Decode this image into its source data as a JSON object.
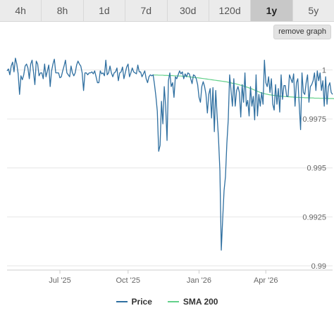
{
  "tabs": [
    {
      "label": "4h",
      "active": false
    },
    {
      "label": "8h",
      "active": false
    },
    {
      "label": "1d",
      "active": false
    },
    {
      "label": "7d",
      "active": false
    },
    {
      "label": "30d",
      "active": false
    },
    {
      "label": "120d",
      "active": false
    },
    {
      "label": "1y",
      "active": true
    },
    {
      "label": "5y",
      "active": false
    }
  ],
  "remove_graph_label": "remove graph",
  "colors": {
    "price": "#2f6fa0",
    "sma": "#62d08a",
    "grid": "#e6e6e6",
    "axis_text": "#666666"
  },
  "chart_data": {
    "type": "line",
    "x_tick_labels": [
      "Jul '25",
      "Oct '25",
      "Jan '26",
      "Apr '26"
    ],
    "y_ticks": [
      0.99,
      0.9925,
      0.995,
      0.9975,
      1
    ],
    "y_tick_labels": [
      "0.99",
      "0.9925",
      "0.995",
      "0.9975",
      "1"
    ],
    "ylim": [
      0.99,
      1.0012
    ],
    "grid": true,
    "legend_position": "bottom-center",
    "series": [
      {
        "name": "Price",
        "values": [
          0.99995,
          1.00005,
          0.99975,
          1.0002,
          1.0004,
          0.9999,
          1.0006,
          1.0003,
          0.9998,
          0.99875,
          0.9997,
          0.9995,
          0.99975,
          1.0002,
          1.0003,
          1.0001,
          0.99955,
          1.0003,
          1.0005,
          0.9999,
          0.99925,
          1.00045,
          1.0003,
          0.9997,
          0.99985,
          0.99985,
          0.99955,
          1.0003,
          0.99965,
          0.99995,
          1.00025,
          0.99915,
          0.99995,
          1.0003,
          1.00055,
          0.99985,
          0.99985,
          0.99985,
          0.9996,
          0.99965,
          0.99995,
          1.0002,
          1.0005,
          0.99985,
          0.99975,
          0.99965,
          1.0002,
          0.99985,
          0.9997,
          0.99985,
          1.00025,
          1.00045,
          1.0003,
          1.0002,
          0.99985,
          0.99895,
          0.99985,
          0.99985,
          0.99975,
          0.99985,
          0.99985,
          0.9999,
          0.9998,
          0.99995,
          0.99965,
          0.99935,
          0.99935,
          0.99995,
          0.9998,
          0.99985,
          0.9997,
          1.0005,
          0.99975,
          0.99985,
          1.0002,
          0.99985,
          0.99965,
          0.99985,
          0.9999,
          1.0001,
          0.99945,
          0.99985,
          0.9999,
          1.00015,
          0.99955,
          0.99985,
          1.00015,
          1.0003,
          0.99965,
          0.99985,
          1.0001,
          0.9999,
          0.99985,
          0.9998,
          1.00025,
          0.9999,
          0.9999,
          0.99965,
          0.9998,
          0.99995,
          0.99955,
          0.99935,
          0.99965,
          0.99975,
          0.9997,
          0.99975,
          0.99925,
          0.99865,
          0.9979,
          0.99585,
          0.99615,
          0.9984,
          0.99725,
          0.99915,
          0.99815,
          0.9964,
          0.99945,
          0.99985,
          0.99915,
          0.99935,
          0.9986,
          0.99965,
          0.99955,
          0.99975,
          0.99995,
          0.9998,
          0.9999,
          0.99955,
          0.9998,
          0.99965,
          0.99985,
          0.9998,
          0.99955,
          0.9993,
          0.99975,
          0.9997,
          0.99955,
          0.99925,
          0.9986,
          0.99835,
          0.99915,
          0.9994,
          0.99915,
          0.99875,
          0.9978,
          0.99875,
          0.99905,
          0.99755,
          0.9991,
          0.99685,
          0.99895,
          0.99765,
          0.9965,
          0.99485,
          0.9908,
          0.9924,
          0.99385,
          0.99455,
          0.99625,
          0.99745,
          0.99975,
          0.99895,
          0.99815,
          0.99955,
          0.99815,
          0.99895,
          0.99915,
          0.99885,
          0.9976,
          0.99925,
          0.99835,
          0.99985,
          0.99815,
          0.99845,
          0.99765,
          0.99915,
          0.99815,
          0.99865,
          0.99745,
          0.99975,
          0.99765,
          0.99875,
          0.99815,
          0.99885,
          0.99825,
          1.0005,
          0.99935,
          0.99915,
          0.99965,
          0.99885,
          0.99955,
          0.99825,
          0.99795,
          0.99925,
          0.99825,
          0.99905,
          0.99785,
          0.99975,
          0.9985,
          0.9992,
          0.9992,
          0.99865,
          0.99865,
          0.99975,
          0.99955,
          0.99935,
          0.9998,
          0.99815,
          0.99935,
          0.99955,
          0.99825,
          0.99695,
          0.99985,
          0.99885,
          0.99875,
          0.99935,
          0.99975,
          0.99835,
          0.99915,
          0.99925,
          0.99945,
          0.99985,
          0.99895,
          0.99995,
          0.99945,
          0.99985,
          0.99895,
          0.99945,
          0.99815,
          0.99965,
          0.99825,
          0.99915,
          0.99935,
          0.99885,
          0.99875
        ]
      },
      {
        "name": "SMA 200",
        "x_start_index": 105,
        "values": [
          0.99975,
          0.99974,
          0.99974,
          0.99974,
          0.99973,
          0.99973,
          0.99973,
          0.99973,
          0.99972,
          0.99972,
          0.99972,
          0.99971,
          0.99971,
          0.99971,
          0.99971,
          0.9997,
          0.9997,
          0.9997,
          0.99969,
          0.99969,
          0.99969,
          0.99968,
          0.99968,
          0.99968,
          0.99967,
          0.99966,
          0.99965,
          0.99964,
          0.99963,
          0.99962,
          0.99961,
          0.9996,
          0.9996,
          0.99959,
          0.99958,
          0.99957,
          0.99956,
          0.99955,
          0.99954,
          0.99953,
          0.99952,
          0.99951,
          0.9995,
          0.99949,
          0.99948,
          0.99947,
          0.99946,
          0.99945,
          0.99944,
          0.99943,
          0.99942,
          0.99941,
          0.9994,
          0.99939,
          0.99937,
          0.99936,
          0.99934,
          0.99932,
          0.99931,
          0.9993,
          0.99928,
          0.99926,
          0.99924,
          0.99922,
          0.9992,
          0.99918,
          0.99916,
          0.99913,
          0.99911,
          0.99908,
          0.99906,
          0.99903,
          0.999,
          0.99897,
          0.99894,
          0.99891,
          0.99888,
          0.99885,
          0.99883,
          0.99881,
          0.99879,
          0.99877,
          0.99876,
          0.99874,
          0.99873,
          0.99872,
          0.99871,
          0.9987,
          0.99869,
          0.99868,
          0.99867,
          0.99866,
          0.99866,
          0.99865,
          0.99865,
          0.99864,
          0.99864,
          0.99863,
          0.99863,
          0.99862,
          0.99862,
          0.99861,
          0.99861,
          0.9986,
          0.9986,
          0.9986,
          0.99859,
          0.99859,
          0.99859,
          0.99858,
          0.99858,
          0.99858,
          0.99857,
          0.99857,
          0.99857,
          0.99857,
          0.99856,
          0.99856,
          0.99856,
          0.99856,
          0.99855,
          0.99855,
          0.99855,
          0.99855,
          0.99855,
          0.99854,
          0.99854,
          0.99854,
          0.99854,
          0.99854,
          0.99853,
          0.99853,
          0.99853,
          0.99853,
          0.99853,
          0.99852,
          0.99852,
          0.99852,
          0.99852,
          0.99852
        ]
      }
    ]
  }
}
